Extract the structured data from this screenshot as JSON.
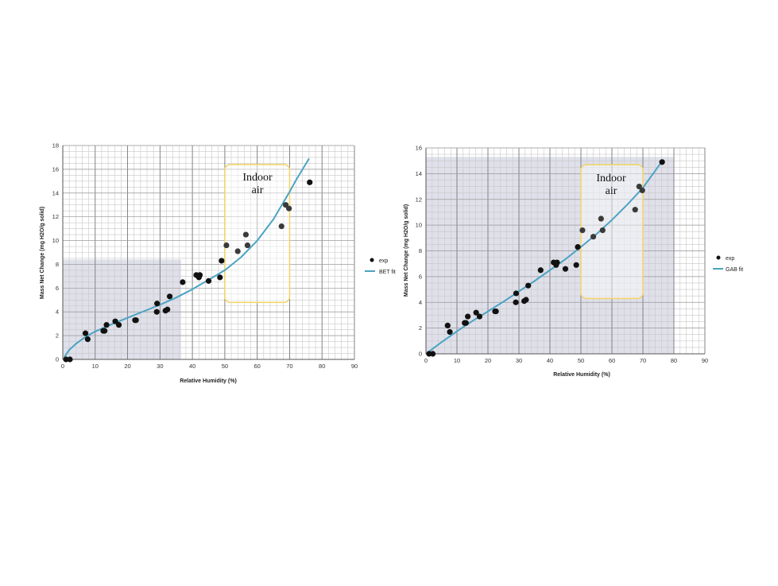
{
  "chart_data": [
    {
      "type": "scatter",
      "xlabel": "Relative Humidity (%)",
      "ylabel": "Mass Net Change (mg H2O/g solid)",
      "xlim": [
        0,
        90
      ],
      "ylim": [
        0,
        18
      ],
      "xticks": [
        0,
        10,
        20,
        30,
        40,
        50,
        60,
        70,
        80,
        90
      ],
      "yticks": [
        0,
        2,
        4,
        6,
        8,
        10,
        12,
        14,
        16,
        18
      ],
      "grid": true,
      "legend_position": "right",
      "shaded_region": {
        "x": [
          0,
          36.5
        ],
        "y": [
          0,
          8.4
        ]
      },
      "annotation_box": {
        "x": [
          50,
          70
        ],
        "y": [
          4.8,
          16.4
        ],
        "text_line1": "Indoor",
        "text_line2": "air"
      },
      "series": [
        {
          "name": "exp",
          "kind": "points",
          "x": [
            1,
            2.2,
            7,
            7.7,
            12.5,
            12.9,
            13.5,
            16.2,
            17.3,
            22.3,
            22.6,
            29,
            29.1,
            31.7,
            32.3,
            33,
            37,
            41.2,
            42,
            42.3,
            45,
            48.5,
            49,
            50.5,
            54,
            56.5,
            57,
            67.5,
            68.8,
            69.8,
            76.2
          ],
          "y": [
            0,
            0,
            2.2,
            1.7,
            2.4,
            2.4,
            2.9,
            3.2,
            2.9,
            3.3,
            3.3,
            4.0,
            4.7,
            4.1,
            4.2,
            5.3,
            6.5,
            7.1,
            6.9,
            7.1,
            6.6,
            6.9,
            8.3,
            9.6,
            9.1,
            10.5,
            9.6,
            11.2,
            13.0,
            12.7,
            14.9
          ]
        },
        {
          "name": "BET fit",
          "kind": "line",
          "x": [
            0.5,
            2,
            4,
            6,
            8,
            10,
            15,
            20,
            25,
            30,
            35,
            40,
            45,
            50,
            55,
            60,
            65,
            70,
            72,
            74,
            76
          ],
          "y": [
            0.2,
            0.8,
            1.3,
            1.7,
            2.05,
            2.35,
            2.95,
            3.5,
            4.05,
            4.6,
            5.2,
            5.9,
            6.7,
            7.5,
            8.6,
            10.0,
            11.8,
            14.1,
            15.1,
            16.0,
            16.9
          ]
        }
      ],
      "colors": {
        "points": "#111111",
        "fit": "#4ba3c3",
        "shade": "#d9dbe6",
        "box": "#f2d56b"
      }
    },
    {
      "type": "scatter",
      "xlabel": "Relative Humidity (%)",
      "ylabel": "Mass Net Change (mg H2O/g solid)",
      "xlim": [
        0,
        90
      ],
      "ylim": [
        0,
        16
      ],
      "xticks": [
        0,
        10,
        20,
        30,
        40,
        50,
        60,
        70,
        80,
        90
      ],
      "yticks": [
        0,
        2,
        4,
        6,
        8,
        10,
        12,
        14,
        16
      ],
      "grid": true,
      "legend_position": "right",
      "shaded_region": {
        "x": [
          0,
          80
        ],
        "y": [
          0,
          15.3
        ]
      },
      "annotation_box": {
        "x": [
          50,
          70
        ],
        "y": [
          4.3,
          14.7
        ],
        "text_line1": "Indoor",
        "text_line2": "air"
      },
      "series": [
        {
          "name": "exp",
          "kind": "points",
          "x": [
            1,
            2.2,
            7,
            7.7,
            12.5,
            12.9,
            13.5,
            16.2,
            17.3,
            22.3,
            22.6,
            29,
            29.1,
            31.7,
            32.3,
            33,
            37,
            41.2,
            42,
            42.3,
            45,
            48.5,
            49,
            50.5,
            54,
            56.5,
            57,
            67.5,
            68.8,
            69.8,
            76.2
          ],
          "y": [
            0,
            0,
            2.2,
            1.7,
            2.4,
            2.4,
            2.9,
            3.2,
            2.9,
            3.3,
            3.3,
            4.0,
            4.7,
            4.1,
            4.2,
            5.3,
            6.5,
            7.1,
            6.9,
            7.1,
            6.6,
            6.9,
            8.3,
            9.6,
            9.1,
            10.5,
            9.6,
            11.2,
            13.0,
            12.7,
            14.9
          ]
        },
        {
          "name": "GAB fit",
          "kind": "line",
          "x": [
            0.5,
            5,
            10,
            15,
            20,
            25,
            30,
            35,
            40,
            45,
            50,
            55,
            60,
            65,
            70,
            76
          ],
          "y": [
            0.1,
            0.9,
            1.75,
            2.55,
            3.3,
            4.05,
            4.85,
            5.65,
            6.5,
            7.35,
            8.3,
            9.3,
            10.4,
            11.6,
            12.9,
            14.9
          ]
        }
      ],
      "colors": {
        "points": "#111111",
        "fit": "#4ba3c3",
        "shade": "#d9dbe6",
        "box": "#f2d56b"
      }
    }
  ]
}
